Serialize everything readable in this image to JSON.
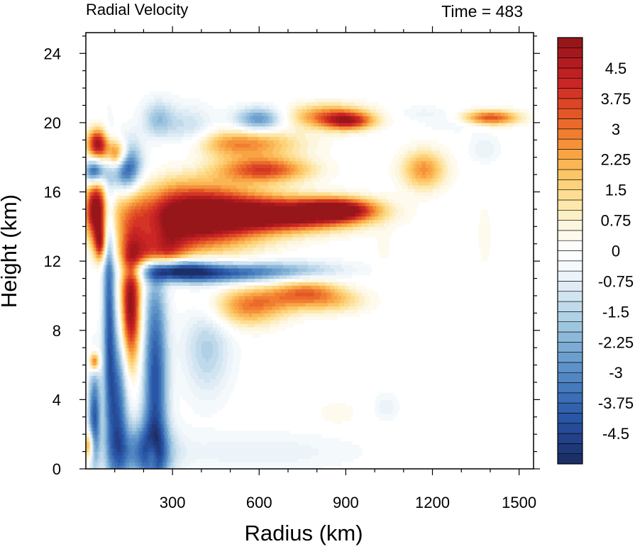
{
  "chart_data": {
    "type": "heatmap",
    "title_left": "Radial Velocity",
    "title_right": "Time = 483",
    "xlabel": "Radius (km)",
    "ylabel": "Height (km)",
    "xlim": [
      0,
      1550
    ],
    "ylim": [
      0,
      25.2
    ],
    "x_ticks": [
      300,
      600,
      900,
      1200,
      1500
    ],
    "y_ticks": [
      0,
      4,
      8,
      12,
      16,
      20,
      24
    ],
    "x_tick_labels": [
      "300",
      "600",
      "900",
      "1200",
      "1500"
    ],
    "y_tick_labels": [
      "0",
      "4",
      "8",
      "12",
      "16",
      "20",
      "24"
    ],
    "colorbar": {
      "labels": [
        "4.5",
        "3.75",
        "3",
        "2.25",
        "1.5",
        "0.75",
        "0",
        "-0.75",
        "-1.5",
        "-2.25",
        "-3",
        "-3.75",
        "-4.5"
      ],
      "label_values": [
        4.5,
        3.75,
        3,
        2.25,
        1.5,
        0.75,
        0,
        -0.75,
        -1.5,
        -2.25,
        -3,
        -3.75,
        -4.5
      ],
      "levels_min": -5.25,
      "levels_max": 5.25,
      "level_step": 0.25,
      "colors": [
        "#1a2b5e",
        "#213f88",
        "#2a58a8",
        "#3f74b9",
        "#5b90c7",
        "#7eadd4",
        "#a7cbe3",
        "#cfe3f0",
        "#eef5fa",
        "#ffffff",
        "#fdf7e3",
        "#fde6a6",
        "#fdcd6e",
        "#f9a747",
        "#f07a2f",
        "#e04d25",
        "#cc2725",
        "#b11b1f",
        "#8e1419"
      ]
    },
    "features": [
      {
        "r": 370,
        "z": 14.6,
        "sr": 170,
        "sz": 1.3,
        "v": 6.2
      },
      {
        "r": 700,
        "z": 14.7,
        "sr": 170,
        "sz": 0.65,
        "v": 5.2
      },
      {
        "r": 880,
        "z": 15.0,
        "sr": 90,
        "sz": 0.45,
        "v": 4.2
      },
      {
        "r": 240,
        "z": 12.4,
        "sr": 70,
        "sz": 0.9,
        "v": 4.0
      },
      {
        "r": 155,
        "z": 9.4,
        "sr": 25,
        "sz": 2.4,
        "v": 5.4
      },
      {
        "r": 35,
        "z": 15.0,
        "sr": 25,
        "sz": 1.2,
        "v": 5.0
      },
      {
        "r": 40,
        "z": 18.8,
        "sr": 25,
        "sz": 0.6,
        "v": 4.8
      },
      {
        "r": 110,
        "z": 18.2,
        "sr": 30,
        "sz": 0.6,
        "v": 4.8
      },
      {
        "r": 50,
        "z": 13.0,
        "sr": 15,
        "sz": 0.7,
        "v": 3.5
      },
      {
        "r": 30,
        "z": 6.2,
        "sr": 12,
        "sz": 0.4,
        "v": 3.8
      },
      {
        "r": 10,
        "z": 1.4,
        "sr": 12,
        "sz": 0.6,
        "v": 3.0
      },
      {
        "r": 230,
        "z": 0.8,
        "sr": 15,
        "sz": 0.7,
        "v": 2.0
      },
      {
        "r": 140,
        "z": 17.6,
        "sr": 35,
        "sz": 1.0,
        "v": -5.0
      },
      {
        "r": 30,
        "z": 17.2,
        "sr": 25,
        "sz": 0.5,
        "v": -4.5
      },
      {
        "r": 300,
        "z": 11.5,
        "sr": 90,
        "sz": 0.45,
        "v": -5.5
      },
      {
        "r": 480,
        "z": 11.3,
        "sr": 130,
        "sz": 0.4,
        "v": -3.2
      },
      {
        "r": 700,
        "z": 11.5,
        "sr": 150,
        "sz": 0.4,
        "v": -1.8
      },
      {
        "r": 240,
        "z": 5.0,
        "sr": 30,
        "sz": 5.0,
        "v": -4.2
      },
      {
        "r": 80,
        "z": 9.5,
        "sr": 15,
        "sz": 5.0,
        "v": -3.5
      },
      {
        "r": 110,
        "z": 3.5,
        "sr": 25,
        "sz": 3.5,
        "v": -3.8
      },
      {
        "r": 30,
        "z": 3.0,
        "sr": 15,
        "sz": 2.0,
        "v": -4.0
      },
      {
        "r": 200,
        "z": 1.0,
        "sr": 70,
        "sz": 1.2,
        "v": -3.0
      },
      {
        "r": 420,
        "z": 7.0,
        "sr": 60,
        "sz": 2.0,
        "v": -1.6
      },
      {
        "r": 600,
        "z": 1.0,
        "sr": 250,
        "sz": 0.8,
        "v": -0.7
      },
      {
        "r": 360,
        "z": 19.5,
        "sr": 60,
        "sz": 1.0,
        "v": -1.5
      },
      {
        "r": 600,
        "z": 20.2,
        "sr": 60,
        "sz": 0.5,
        "v": -3.0
      },
      {
        "r": 250,
        "z": 20.2,
        "sr": 40,
        "sz": 0.8,
        "v": -1.8
      },
      {
        "r": 540,
        "z": 18.8,
        "sr": 140,
        "sz": 0.6,
        "v": 2.8
      },
      {
        "r": 620,
        "z": 17.3,
        "sr": 110,
        "sz": 0.5,
        "v": 3.5
      },
      {
        "r": 550,
        "z": 9.3,
        "sr": 90,
        "sz": 0.8,
        "v": 2.3
      },
      {
        "r": 680,
        "z": 9.8,
        "sr": 110,
        "sz": 0.6,
        "v": 1.6
      },
      {
        "r": 770,
        "z": 10.3,
        "sr": 80,
        "sz": 0.5,
        "v": 2.0
      },
      {
        "r": 870,
        "z": 9.7,
        "sr": 80,
        "sz": 0.5,
        "v": 1.3
      },
      {
        "r": 840,
        "z": 20.4,
        "sr": 100,
        "sz": 0.5,
        "v": 2.8
      },
      {
        "r": 910,
        "z": 20.1,
        "sr": 60,
        "sz": 0.35,
        "v": 3.3
      },
      {
        "r": 1170,
        "z": 17.3,
        "sr": 55,
        "sz": 0.8,
        "v": 2.6
      },
      {
        "r": 1400,
        "z": 20.3,
        "sr": 70,
        "sz": 0.3,
        "v": 3.6
      },
      {
        "r": 1380,
        "z": 18.5,
        "sr": 40,
        "sz": 0.6,
        "v": -0.7
      },
      {
        "r": 1280,
        "z": 20.0,
        "sr": 80,
        "sz": 0.4,
        "v": -0.6
      },
      {
        "r": 1160,
        "z": 20.6,
        "sr": 70,
        "sz": 0.3,
        "v": -0.5
      },
      {
        "r": 1380,
        "z": 13.5,
        "sr": 20,
        "sz": 1.6,
        "v": 0.4
      },
      {
        "r": 1040,
        "z": 3.6,
        "sr": 30,
        "sz": 0.6,
        "v": -0.7
      },
      {
        "r": 870,
        "z": 3.2,
        "sr": 50,
        "sz": 0.5,
        "v": 0.5
      },
      {
        "r": 1030,
        "z": 12.8,
        "sr": 20,
        "sz": 0.8,
        "v": 0.4
      }
    ]
  }
}
